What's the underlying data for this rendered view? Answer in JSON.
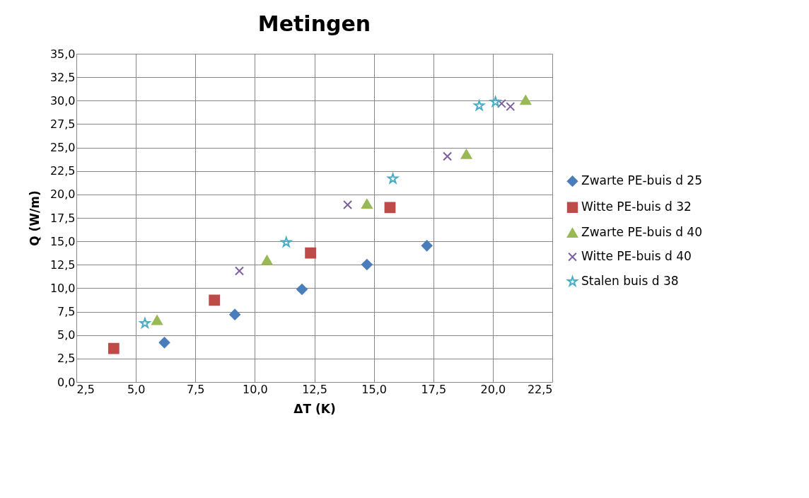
{
  "chart_data": {
    "type": "scatter",
    "title": "Metingen",
    "xlabel": "ΔT (K)",
    "ylabel": "Q (W/m)",
    "xlim": [
      2.5,
      22.5
    ],
    "ylim": [
      0,
      35
    ],
    "xticks": [
      {
        "value": 2.5,
        "label": "2,5"
      },
      {
        "value": 5,
        "label": "5,0"
      },
      {
        "value": 7.5,
        "label": "7,5"
      },
      {
        "value": 10,
        "label": "10,0"
      },
      {
        "value": 12.5,
        "label": "12,5"
      },
      {
        "value": 15,
        "label": "15,0"
      },
      {
        "value": 17.5,
        "label": "17,5"
      },
      {
        "value": 20,
        "label": "20,0"
      },
      {
        "value": 22.5,
        "label": "22,5"
      }
    ],
    "yticks": [
      {
        "value": 0,
        "label": "0,0"
      },
      {
        "value": 2.5,
        "label": "2,5"
      },
      {
        "value": 5,
        "label": "5,0"
      },
      {
        "value": 7.5,
        "label": "7,5"
      },
      {
        "value": 10,
        "label": "10,0"
      },
      {
        "value": 12.5,
        "label": "12,5"
      },
      {
        "value": 15,
        "label": "15,0"
      },
      {
        "value": 17.5,
        "label": "17,5"
      },
      {
        "value": 20,
        "label": "20,0"
      },
      {
        "value": 22.5,
        "label": "22,5"
      },
      {
        "value": 25,
        "label": "25,0"
      },
      {
        "value": 27.5,
        "label": "27,5"
      },
      {
        "value": 30,
        "label": "30,0"
      },
      {
        "value": 32.5,
        "label": "32,5"
      },
      {
        "value": 35,
        "label": "35,0"
      }
    ],
    "grid": true,
    "legend": "right",
    "series": [
      {
        "name": "Zwarte PE-buis d 25",
        "color": "#4a7ebb",
        "marker": "diamond",
        "x": [
          6.2,
          9.16,
          11.98,
          14.71,
          17.23
        ],
        "values": [
          4.2,
          7.19,
          9.88,
          12.52,
          14.53
        ]
      },
      {
        "name": "Witte PE-buis d 32",
        "color": "#be4b48",
        "marker": "square",
        "x": [
          4.07,
          8.3,
          12.34,
          15.68
        ],
        "values": [
          3.57,
          8.72,
          13.75,
          18.6
        ]
      },
      {
        "name": "Zwarte PE-buis d 40",
        "color": "#98b954",
        "marker": "triangle",
        "x": [
          5.89,
          10.51,
          14.71,
          18.89,
          21.38
        ],
        "values": [
          6.6,
          13.0,
          19.0,
          24.3,
          30.07
        ]
      },
      {
        "name": "Witte PE-buis d 40",
        "color": "#7d5fa0",
        "marker": "cross",
        "x": [
          9.35,
          13.9,
          18.09,
          20.37,
          20.74
        ],
        "values": [
          11.84,
          18.9,
          24.06,
          29.69,
          29.37
        ]
      },
      {
        "name": "Stalen buis d 38",
        "color": "#4bacc6",
        "marker": "star",
        "x": [
          5.38,
          11.32,
          15.8,
          19.43,
          20.11
        ],
        "values": [
          6.26,
          14.89,
          21.67,
          29.46,
          29.87
        ]
      }
    ]
  }
}
